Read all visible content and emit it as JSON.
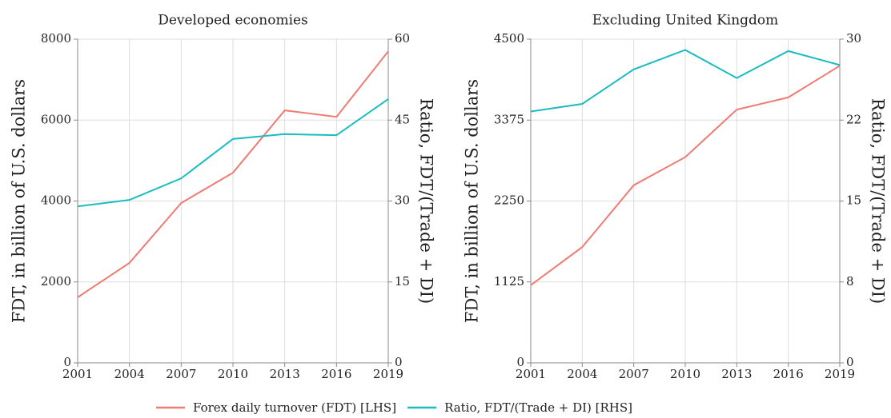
{
  "chart_data": [
    {
      "type": "line",
      "title": "Developed economies",
      "ylabel": "FDT, in billion of U.S. dollars",
      "y2label": "Ratio, FDT/(Trade + DI)",
      "x": [
        2001,
        2004,
        2007,
        2010,
        2013,
        2016,
        2019
      ],
      "xlim": [
        2001,
        2019
      ],
      "xticks": [
        2001,
        2004,
        2007,
        2010,
        2013,
        2016,
        2019
      ],
      "ylim": [
        0,
        8000
      ],
      "yticks": [
        0,
        2000,
        4000,
        6000,
        8000
      ],
      "y2lim": [
        0,
        60
      ],
      "y2ticks": [
        0,
        15,
        30,
        45,
        60
      ],
      "grid": true,
      "series": [
        {
          "name": "Forex daily turnover (FDT) [LHS]",
          "color": "#ef7b72",
          "values": [
            1620,
            2470,
            3950,
            4700,
            6240,
            6080,
            7700
          ]
        },
        {
          "name": "Ratio, FDT/(Trade + DI) [RHS]",
          "color": "#1bbcc1",
          "axis": "y2",
          "values": [
            29.0,
            30.2,
            34.2,
            41.5,
            42.4,
            42.2,
            48.9
          ]
        }
      ]
    },
    {
      "type": "line",
      "title": "Excluding United Kingdom",
      "ylabel": "FDT, in billion of U.S. dollars",
      "y2label": "Ratio, FDT/(Trade + DI)",
      "x": [
        2001,
        2004,
        2007,
        2010,
        2013,
        2016,
        2019
      ],
      "xlim": [
        2001,
        2019
      ],
      "xticks": [
        2001,
        2004,
        2007,
        2010,
        2013,
        2016,
        2019
      ],
      "ylim": [
        0,
        4500
      ],
      "yticks": [
        0,
        1125,
        2250,
        3375,
        4500
      ],
      "y2lim": [
        0,
        30
      ],
      "y2ticks": [
        0,
        {
          "value": 7.5,
          "label": "8"
        },
        15,
        {
          "value": 22.5,
          "label": "22"
        },
        30
      ],
      "grid": true,
      "series": [
        {
          "color": "#ef7b72",
          "values": [
            1080,
            1610,
            2470,
            2860,
            3520,
            3690,
            4130
          ]
        },
        {
          "color": "#1bbcc1",
          "axis": "y2",
          "values": [
            23.3,
            24.0,
            27.2,
            29.0,
            26.4,
            28.9,
            27.6
          ]
        }
      ]
    }
  ]
}
